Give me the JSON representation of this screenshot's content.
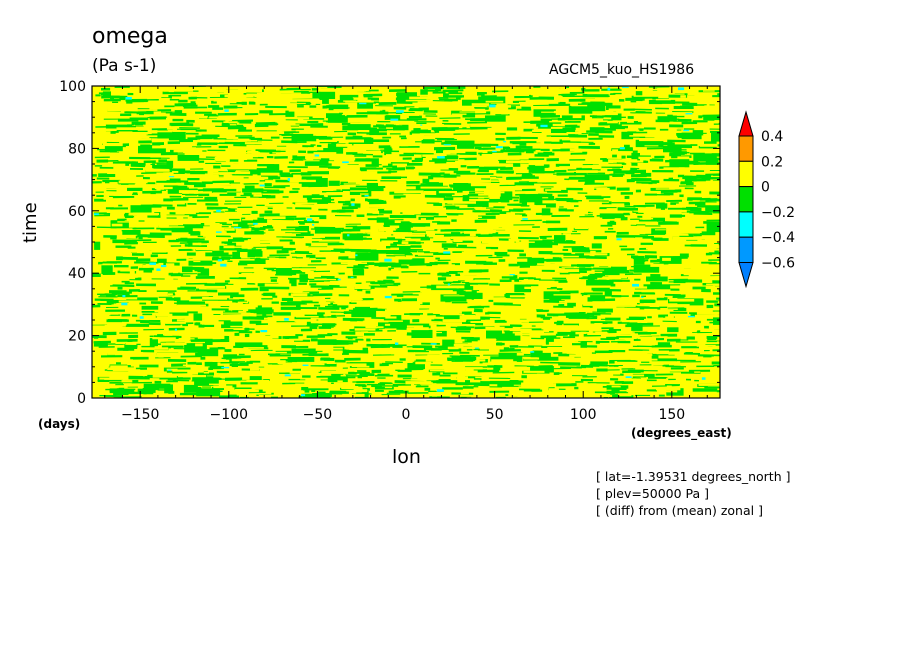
{
  "header": {
    "title": "omega",
    "units": "(Pa s-1)",
    "model": "AGCM5_kuo_HS1986"
  },
  "footer": {
    "lines": [
      "[ lat=-1.39531 degrees_north ]",
      "[ plev=50000 Pa ]",
      "[ (diff) from (mean) zonal ]"
    ]
  },
  "chart_data": {
    "type": "heatmap",
    "title": "omega",
    "subtitle": "(Pa s-1)",
    "xlabel": "lon",
    "xunits": "(degrees_east)",
    "ylabel": "time",
    "yunits": "(days)",
    "xlim": [
      -177.1875,
      177.1875
    ],
    "ylim": [
      0,
      100
    ],
    "xticks": [
      -150,
      -100,
      -50,
      0,
      50,
      100,
      150
    ],
    "yticks": [
      0,
      20,
      40,
      60,
      80,
      100
    ],
    "xtick_labels": [
      "−150",
      "−100",
      "−50",
      "0",
      "50",
      "100",
      "150"
    ],
    "ytick_labels": [
      "0",
      "20",
      "40",
      "60",
      "80",
      "100"
    ],
    "grid": false,
    "colorbar": {
      "levels": [
        -0.6,
        -0.4,
        -0.2,
        0,
        0.2,
        0.4
      ],
      "labels": [
        "0.4",
        "0.2",
        "0",
        "−0.2",
        "−0.4",
        "−0.6"
      ],
      "bins": [
        {
          "range": "< -0.6",
          "color": "#0080ff"
        },
        {
          "range": "-0.6 to -0.4",
          "color": "#0099ff"
        },
        {
          "range": "-0.4 to -0.2",
          "color": "#00ffff"
        },
        {
          "range": "-0.2 to 0",
          "color": "#00e000"
        },
        {
          "range": "0 to 0.2",
          "color": "#ffff00"
        },
        {
          "range": "0.2 to 0.4",
          "color": "#ff9900"
        },
        {
          "range": "> 0.4",
          "color": "#ff0000"
        }
      ]
    },
    "dominant_value_ranges": [
      "0 to 0.2",
      "-0.2 to 0"
    ],
    "sparse_value_ranges": [
      "-0.4 to -0.2"
    ]
  }
}
